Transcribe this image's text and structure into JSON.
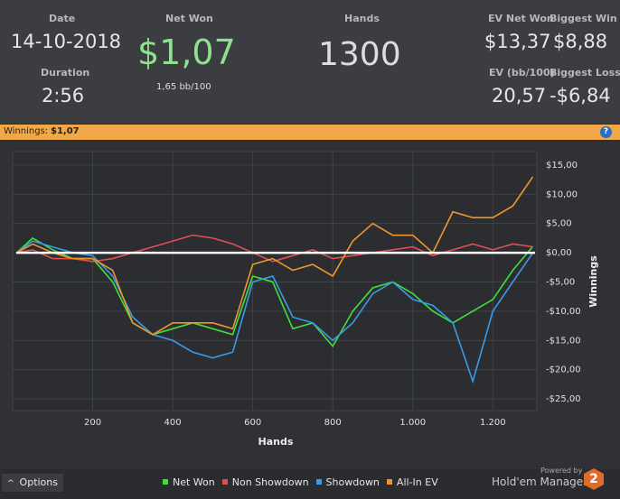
{
  "header": {
    "date_label": "Date",
    "date": "14-10-2018",
    "duration_label": "Duration",
    "duration": "2:56",
    "net_won_label": "Net Won",
    "net_won": "$1,07",
    "net_won_bb": "1,65 bb/100",
    "hands_label": "Hands",
    "hands": "1300",
    "ev_net_won_label": "EV Net Won",
    "ev_net_won": "$13,37",
    "biggest_win_label": "Biggest Win",
    "biggest_win": "$8,88",
    "ev_bb_label": "EV (bb/100)",
    "ev_bb": "20,57",
    "biggest_loss_label": "Biggest Loss",
    "biggest_loss": "-$6,84"
  },
  "bar": {
    "label": "Winnings:",
    "value": "$1,07"
  },
  "footer": {
    "options": "Options",
    "powered": "Powered by",
    "brand": "Hold'em Manager",
    "brand_num": "2"
  },
  "chart_data": {
    "type": "line",
    "xlabel": "Hands",
    "ylabel": "Winnings",
    "grid": true,
    "x": [
      10,
      50,
      100,
      150,
      200,
      250,
      300,
      350,
      400,
      450,
      500,
      550,
      600,
      650,
      700,
      750,
      800,
      850,
      900,
      950,
      1000,
      1050,
      1100,
      1150,
      1200,
      1250,
      1300
    ],
    "xlim": [
      0,
      1310
    ],
    "xticks": [
      200,
      400,
      600,
      800,
      {
        "value": 1000,
        "label": "1.000"
      },
      {
        "value": 1200,
        "label": "1.200"
      }
    ],
    "ylim": [
      -27,
      17.3
    ],
    "yticks": [
      {
        "value": 15,
        "label": "$15,00"
      },
      {
        "value": 10,
        "label": "$10,00"
      },
      {
        "value": 5,
        "label": "$5,00"
      },
      {
        "value": 0,
        "label": "$0,00"
      },
      {
        "value": -5,
        "label": "-$5,00"
      },
      {
        "value": -10,
        "label": "-$10,00"
      },
      {
        "value": -15,
        "label": "-$15,00"
      },
      {
        "value": -20,
        "label": "-$20,00"
      },
      {
        "value": -25,
        "label": "-$25,00"
      }
    ],
    "series": [
      {
        "name": "Net Won",
        "color": "#3ee03e",
        "values": [
          0,
          2.5,
          0.5,
          -1,
          -1,
          -5,
          -12,
          -14,
          -13,
          -12,
          -13,
          -14,
          -4,
          -5,
          -13,
          -12,
          -16,
          -10,
          -6,
          -5,
          -7,
          -10,
          -12,
          -10,
          -8,
          -3,
          1.07
        ]
      },
      {
        "name": "Non Showdown",
        "color": "#e05050",
        "values": [
          0,
          0.5,
          -1,
          -1,
          -1.5,
          -1,
          0,
          1,
          2,
          3,
          2.5,
          1.5,
          0,
          -1.5,
          -0.5,
          0.5,
          -1,
          -0.5,
          0,
          0.5,
          1,
          -0.5,
          0.5,
          1.5,
          0.5,
          1.5,
          1
        ]
      },
      {
        "name": "Showdown",
        "color": "#3a9ae8",
        "values": [
          0,
          2,
          1,
          0,
          -0.5,
          -4,
          -11,
          -14,
          -15,
          -17,
          -18,
          -17,
          -5,
          -4,
          -11,
          -12,
          -15,
          -12,
          -7,
          -5,
          -8,
          -9,
          -12,
          -22,
          -10,
          -5,
          0
        ]
      },
      {
        "name": "All-In EV",
        "color": "#f0952e",
        "values": [
          0,
          1.5,
          0,
          -1,
          -1,
          -3,
          -12,
          -14,
          -12,
          -12,
          -12,
          -13,
          -2,
          -1,
          -3,
          -2,
          -4,
          2,
          5,
          3,
          3,
          0,
          7,
          6,
          6,
          8,
          13
        ]
      }
    ]
  }
}
